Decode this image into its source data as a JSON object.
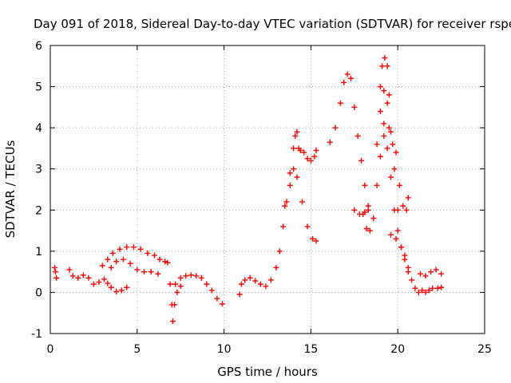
{
  "chart_data": {
    "type": "scatter",
    "title": "Day 091 of 2018, Sidereal Day-to-day VTEC variation (SDTVAR) for receiver rspe",
    "xlabel": "GPS time / hours",
    "ylabel": "SDTVAR / TECUs",
    "xlim": [
      0,
      25
    ],
    "ylim": [
      -1,
      6
    ],
    "xticks": [
      "0",
      "5",
      "10",
      "15",
      "20",
      "25"
    ],
    "yticks": [
      "-1",
      "0",
      "1",
      "2",
      "3",
      "4",
      "5",
      "6"
    ],
    "grid": true,
    "marker": "plus",
    "color": "#ff0000",
    "series": [
      {
        "name": "SDTVAR",
        "points": [
          [
            0.25,
            0.6
          ],
          [
            0.3,
            0.5
          ],
          [
            0.35,
            0.35
          ],
          [
            1.1,
            0.55
          ],
          [
            1.3,
            0.4
          ],
          [
            1.6,
            0.35
          ],
          [
            1.9,
            0.42
          ],
          [
            2.2,
            0.35
          ],
          [
            2.5,
            0.2
          ],
          [
            2.8,
            0.25
          ],
          [
            3.1,
            0.32
          ],
          [
            3.3,
            0.22
          ],
          [
            3.5,
            0.12
          ],
          [
            3.8,
            0.02
          ],
          [
            4.1,
            0.05
          ],
          [
            4.4,
            0.12
          ],
          [
            3.0,
            0.65
          ],
          [
            3.3,
            0.8
          ],
          [
            3.6,
            0.95
          ],
          [
            4.0,
            1.05
          ],
          [
            4.4,
            1.1
          ],
          [
            4.8,
            1.1
          ],
          [
            5.2,
            1.05
          ],
          [
            5.6,
            0.95
          ],
          [
            6.0,
            0.9
          ],
          [
            3.5,
            0.6
          ],
          [
            3.8,
            0.75
          ],
          [
            4.2,
            0.8
          ],
          [
            4.6,
            0.7
          ],
          [
            5.0,
            0.55
          ],
          [
            5.4,
            0.5
          ],
          [
            5.8,
            0.5
          ],
          [
            6.2,
            0.45
          ],
          [
            6.3,
            0.8
          ],
          [
            6.6,
            0.75
          ],
          [
            6.75,
            0.72
          ],
          [
            6.9,
            0.2
          ],
          [
            7.0,
            -0.3
          ],
          [
            7.05,
            -0.7
          ],
          [
            7.15,
            -0.3
          ],
          [
            7.3,
            0.0
          ],
          [
            7.5,
            0.15
          ],
          [
            7.2,
            0.2
          ],
          [
            7.5,
            0.35
          ],
          [
            7.8,
            0.4
          ],
          [
            8.1,
            0.42
          ],
          [
            8.4,
            0.4
          ],
          [
            8.7,
            0.35
          ],
          [
            9.0,
            0.2
          ],
          [
            9.3,
            0.05
          ],
          [
            9.6,
            -0.15
          ],
          [
            9.9,
            -0.28
          ],
          [
            10.9,
            -0.05
          ],
          [
            11.0,
            0.2
          ],
          [
            11.2,
            0.3
          ],
          [
            11.5,
            0.35
          ],
          [
            11.8,
            0.28
          ],
          [
            12.1,
            0.2
          ],
          [
            12.4,
            0.15
          ],
          [
            12.7,
            0.3
          ],
          [
            13.0,
            0.6
          ],
          [
            13.2,
            1.0
          ],
          [
            13.4,
            1.6
          ],
          [
            13.6,
            2.2
          ],
          [
            13.8,
            2.6
          ],
          [
            14.0,
            3.0
          ],
          [
            14.2,
            2.8
          ],
          [
            14.5,
            2.2
          ],
          [
            14.8,
            1.6
          ],
          [
            15.1,
            1.3
          ],
          [
            15.3,
            1.25
          ],
          [
            13.5,
            2.1
          ],
          [
            13.8,
            2.9
          ],
          [
            14.0,
            3.5
          ],
          [
            14.1,
            3.8
          ],
          [
            14.2,
            3.9
          ],
          [
            14.3,
            3.5
          ],
          [
            14.4,
            3.45
          ],
          [
            14.6,
            3.4
          ],
          [
            14.8,
            3.25
          ],
          [
            15.0,
            3.2
          ],
          [
            15.2,
            3.3
          ],
          [
            15.3,
            3.45
          ],
          [
            16.1,
            3.65
          ],
          [
            16.4,
            4.0
          ],
          [
            16.7,
            4.6
          ],
          [
            16.9,
            5.1
          ],
          [
            17.1,
            5.3
          ],
          [
            17.3,
            5.2
          ],
          [
            17.5,
            4.5
          ],
          [
            17.7,
            3.8
          ],
          [
            17.9,
            3.2
          ],
          [
            18.1,
            2.6
          ],
          [
            18.3,
            2.1
          ],
          [
            17.5,
            2.0
          ],
          [
            17.8,
            1.9
          ],
          [
            18.1,
            1.95
          ],
          [
            18.3,
            2.0
          ],
          [
            18.0,
            1.9
          ],
          [
            18.2,
            1.55
          ],
          [
            18.4,
            1.5
          ],
          [
            18.6,
            1.8
          ],
          [
            18.8,
            2.6
          ],
          [
            19.0,
            3.3
          ],
          [
            19.2,
            3.8
          ],
          [
            19.4,
            3.5
          ],
          [
            19.6,
            2.8
          ],
          [
            19.8,
            2.0
          ],
          [
            20.0,
            1.5
          ],
          [
            20.2,
            1.1
          ],
          [
            20.4,
            0.8
          ],
          [
            20.6,
            0.6
          ],
          [
            18.8,
            3.6
          ],
          [
            19.0,
            4.4
          ],
          [
            19.2,
            4.9
          ],
          [
            19.4,
            4.6
          ],
          [
            19.6,
            3.9
          ],
          [
            19.8,
            3.0
          ],
          [
            20.0,
            2.0
          ],
          [
            19.0,
            5.0
          ],
          [
            19.1,
            5.5
          ],
          [
            19.25,
            5.7
          ],
          [
            19.4,
            5.5
          ],
          [
            19.5,
            4.8
          ],
          [
            19.2,
            4.1
          ],
          [
            19.5,
            4.0
          ],
          [
            19.7,
            3.6
          ],
          [
            19.9,
            3.4
          ],
          [
            20.1,
            2.6
          ],
          [
            20.3,
            2.1
          ],
          [
            20.5,
            2.0
          ],
          [
            20.6,
            2.3
          ],
          [
            19.6,
            1.4
          ],
          [
            19.9,
            1.3
          ],
          [
            20.2,
            1.1
          ],
          [
            20.4,
            0.9
          ],
          [
            20.6,
            0.5
          ],
          [
            20.8,
            0.3
          ],
          [
            21.0,
            0.1
          ],
          [
            21.2,
            0.0
          ],
          [
            21.4,
            0.05
          ],
          [
            21.6,
            0.0
          ],
          [
            21.8,
            0.05
          ],
          [
            22.0,
            0.1
          ],
          [
            22.3,
            0.1
          ],
          [
            22.5,
            0.12
          ],
          [
            21.3,
            0.45
          ],
          [
            21.6,
            0.4
          ],
          [
            21.9,
            0.5
          ],
          [
            22.2,
            0.55
          ],
          [
            22.5,
            0.45
          ]
        ]
      }
    ]
  }
}
